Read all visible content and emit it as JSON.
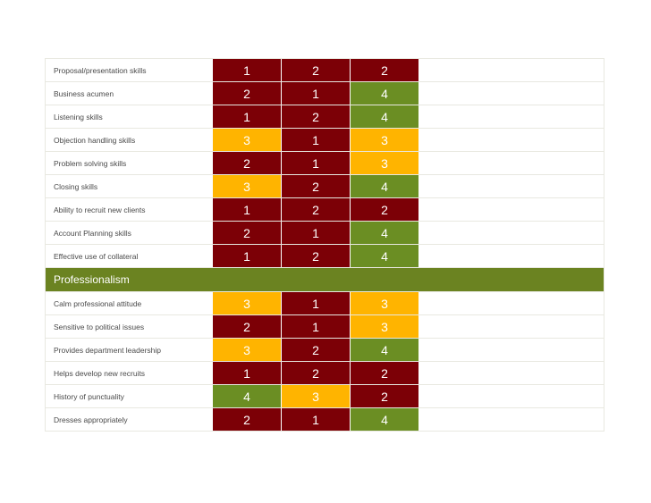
{
  "sections": [
    {
      "title": "",
      "rows": [
        {
          "label": "Proposal/presentation skills",
          "scores": [
            "1",
            "2",
            "2"
          ]
        },
        {
          "label": "Business acumen",
          "scores": [
            "2",
            "1",
            "4"
          ]
        },
        {
          "label": "Listening skills",
          "scores": [
            "1",
            "2",
            "4"
          ]
        },
        {
          "label": "Objection handling skills",
          "scores": [
            "3",
            "1",
            "3"
          ]
        },
        {
          "label": "Problem solving skills",
          "scores": [
            "2",
            "1",
            "3"
          ]
        },
        {
          "label": "Closing skills",
          "scores": [
            "3",
            "2",
            "4"
          ]
        },
        {
          "label": "Ability to recruit new clients",
          "scores": [
            "1",
            "2",
            "2"
          ]
        },
        {
          "label": "Account Planning skills",
          "scores": [
            "2",
            "1",
            "4"
          ]
        },
        {
          "label": "Effective use of collateral",
          "scores": [
            "1",
            "2",
            "4"
          ]
        }
      ]
    },
    {
      "title": "Professionalism",
      "rows": [
        {
          "label": "Calm professional attitude",
          "scores": [
            "3",
            "1",
            "3"
          ]
        },
        {
          "label": "Sensitive to political issues",
          "scores": [
            "2",
            "1",
            "3"
          ]
        },
        {
          "label": "Provides department leadership",
          "scores": [
            "3",
            "2",
            "4"
          ]
        },
        {
          "label": "Helps develop new recruits",
          "scores": [
            "1",
            "2",
            "2"
          ]
        },
        {
          "label": "History of punctuality",
          "scores": [
            "4",
            "3",
            "2"
          ]
        },
        {
          "label": "Dresses appropriately",
          "scores": [
            "2",
            "1",
            "4"
          ]
        }
      ]
    }
  ],
  "colors": {
    "score_1": "#7c0006",
    "score_2": "#7c0006",
    "score_3": "#ffb400",
    "score_4": "#6b8e23",
    "section_header": "#6b8321"
  }
}
